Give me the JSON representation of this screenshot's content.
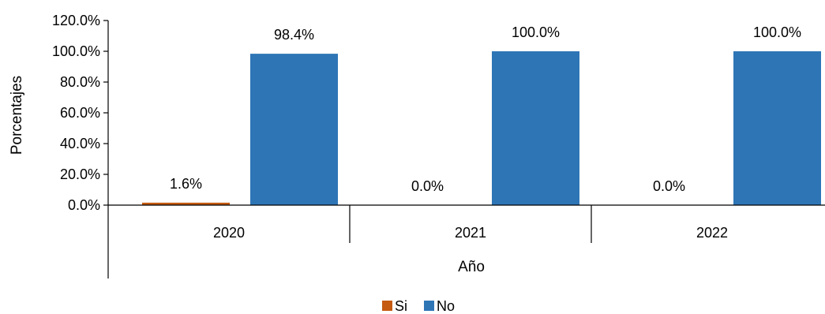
{
  "chart_data": {
    "type": "bar",
    "categories": [
      "2020",
      "2021",
      "2022"
    ],
    "series": [
      {
        "name": "Si",
        "values": [
          1.6,
          0.0,
          0.0
        ],
        "labels": [
          "1.6%",
          "0.0%",
          "0.0%"
        ],
        "color": "#c55a11"
      },
      {
        "name": "No",
        "values": [
          98.4,
          100.0,
          100.0
        ],
        "labels": [
          "98.4%",
          "100.0%",
          "100.0%"
        ],
        "color": "#2e75b6"
      }
    ],
    "title": "",
    "xlabel": "Año",
    "ylabel": "Porcentajes",
    "ylim": [
      0,
      120
    ],
    "ytick_values": [
      0,
      20,
      40,
      60,
      80,
      100,
      120
    ],
    "ytick_labels": [
      "0.0%",
      "20.0%",
      "40.0%",
      "60.0%",
      "80.0%",
      "100.0%",
      "120.0%"
    ],
    "grid": false,
    "legend_position": "bottom"
  }
}
